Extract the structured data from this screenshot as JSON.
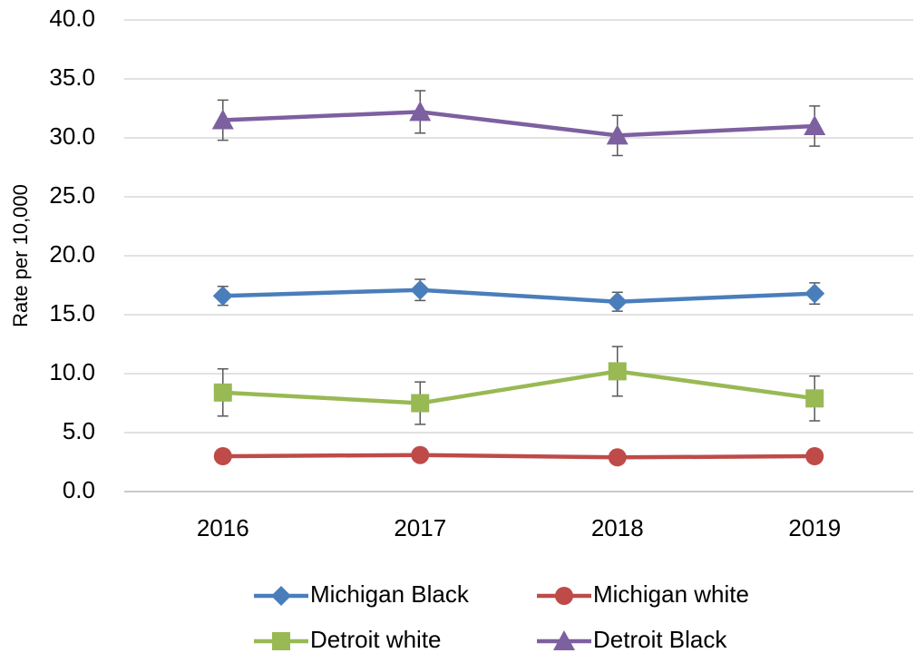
{
  "chart_data": {
    "type": "line",
    "y_label": "Rate per 10,000",
    "categories": [
      "2016",
      "2017",
      "2018",
      "2019"
    ],
    "series": [
      {
        "name": "Michigan Black",
        "color": "#4a7ebb",
        "marker": "diamond",
        "values": [
          16.6,
          17.1,
          16.1,
          16.8
        ],
        "errors": [
          0.8,
          0.9,
          0.8,
          0.9
        ]
      },
      {
        "name": "Michigan white",
        "color": "#be4b48",
        "marker": "circle",
        "values": [
          3.0,
          3.1,
          2.9,
          3.0
        ]
      },
      {
        "name": "Detroit white",
        "color": "#98b954",
        "marker": "square",
        "values": [
          8.4,
          7.5,
          10.2,
          7.9
        ],
        "errors": [
          2.0,
          1.8,
          2.1,
          1.9
        ]
      },
      {
        "name": "Detroit Black",
        "color": "#7d60a0",
        "marker": "triangle",
        "values": [
          31.5,
          32.2,
          30.2,
          31.0
        ],
        "errors": [
          1.7,
          1.8,
          1.7,
          1.7
        ]
      }
    ],
    "ylim": [
      0,
      40
    ],
    "yticks": [
      {
        "value": 0,
        "label": "0.0"
      },
      {
        "value": 5,
        "label": "5.0"
      },
      {
        "value": 10,
        "label": "10.0"
      },
      {
        "value": 15,
        "label": "15.0"
      },
      {
        "value": 20,
        "label": "20.0"
      },
      {
        "value": 25,
        "label": "25.0"
      },
      {
        "value": 30,
        "label": "30.0"
      },
      {
        "value": 35,
        "label": "35.0"
      },
      {
        "value": 40,
        "label": "40.0"
      }
    ],
    "grid": true,
    "legend": "bottom"
  }
}
